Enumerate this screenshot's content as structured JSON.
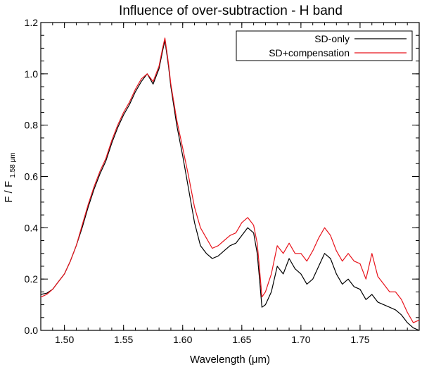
{
  "chart_data": {
    "type": "line",
    "title": "Influence of over-subtraction - H band",
    "xlabel": "Wavelength (μm)",
    "ylabel_main": "F / F",
    "ylabel_sub": "1.58 μm",
    "xlim": [
      1.48,
      1.8
    ],
    "ylim": [
      0.0,
      1.2
    ],
    "xticks": [
      1.5,
      1.55,
      1.6,
      1.65,
      1.7,
      1.75
    ],
    "xtick_labels": [
      "1.50",
      "1.55",
      "1.60",
      "1.65",
      "1.70",
      "1.75"
    ],
    "yticks": [
      0.0,
      0.2,
      0.4,
      0.6,
      0.8,
      1.0,
      1.2
    ],
    "ytick_labels": [
      "0.0",
      "0.2",
      "0.4",
      "0.6",
      "0.8",
      "1.0",
      "1.2"
    ],
    "grid": false,
    "legend_position": "top-right",
    "series": [
      {
        "name": "SD-only",
        "color": "#000000",
        "x": [
          1.48,
          1.485,
          1.49,
          1.495,
          1.5,
          1.505,
          1.51,
          1.515,
          1.52,
          1.525,
          1.53,
          1.535,
          1.54,
          1.545,
          1.55,
          1.555,
          1.56,
          1.565,
          1.57,
          1.575,
          1.58,
          1.583,
          1.585,
          1.588,
          1.59,
          1.595,
          1.6,
          1.605,
          1.61,
          1.615,
          1.62,
          1.625,
          1.63,
          1.635,
          1.64,
          1.645,
          1.65,
          1.655,
          1.66,
          1.663,
          1.665,
          1.667,
          1.67,
          1.675,
          1.68,
          1.685,
          1.69,
          1.695,
          1.7,
          1.705,
          1.71,
          1.715,
          1.72,
          1.725,
          1.73,
          1.735,
          1.74,
          1.745,
          1.75,
          1.755,
          1.76,
          1.765,
          1.77,
          1.775,
          1.78,
          1.785,
          1.79,
          1.795,
          1.8
        ],
        "y": [
          0.14,
          0.145,
          0.16,
          0.19,
          0.22,
          0.27,
          0.33,
          0.4,
          0.48,
          0.55,
          0.61,
          0.66,
          0.73,
          0.79,
          0.84,
          0.88,
          0.93,
          0.97,
          1.0,
          0.96,
          1.02,
          1.09,
          1.13,
          1.03,
          0.95,
          0.8,
          0.68,
          0.55,
          0.42,
          0.33,
          0.3,
          0.28,
          0.29,
          0.31,
          0.33,
          0.34,
          0.37,
          0.4,
          0.38,
          0.3,
          0.2,
          0.09,
          0.1,
          0.15,
          0.25,
          0.22,
          0.28,
          0.24,
          0.22,
          0.18,
          0.2,
          0.25,
          0.3,
          0.28,
          0.22,
          0.18,
          0.2,
          0.17,
          0.16,
          0.12,
          0.14,
          0.11,
          0.1,
          0.09,
          0.08,
          0.06,
          0.03,
          0.01,
          0.0
        ]
      },
      {
        "name": "SD+compensation",
        "color": "#e8141c",
        "x": [
          1.48,
          1.485,
          1.49,
          1.495,
          1.5,
          1.505,
          1.51,
          1.515,
          1.52,
          1.525,
          1.53,
          1.535,
          1.54,
          1.545,
          1.55,
          1.555,
          1.56,
          1.565,
          1.57,
          1.575,
          1.58,
          1.583,
          1.585,
          1.588,
          1.59,
          1.595,
          1.6,
          1.605,
          1.61,
          1.615,
          1.62,
          1.625,
          1.63,
          1.635,
          1.64,
          1.645,
          1.65,
          1.655,
          1.66,
          1.663,
          1.665,
          1.667,
          1.67,
          1.675,
          1.68,
          1.685,
          1.69,
          1.695,
          1.7,
          1.705,
          1.71,
          1.715,
          1.72,
          1.725,
          1.73,
          1.735,
          1.74,
          1.745,
          1.75,
          1.755,
          1.76,
          1.765,
          1.77,
          1.775,
          1.78,
          1.785,
          1.79,
          1.795,
          1.8
        ],
        "y": [
          0.13,
          0.14,
          0.16,
          0.19,
          0.22,
          0.27,
          0.33,
          0.41,
          0.49,
          0.56,
          0.62,
          0.67,
          0.74,
          0.8,
          0.85,
          0.89,
          0.94,
          0.98,
          1.0,
          0.97,
          1.03,
          1.1,
          1.14,
          1.04,
          0.96,
          0.82,
          0.71,
          0.6,
          0.48,
          0.4,
          0.36,
          0.32,
          0.33,
          0.35,
          0.37,
          0.38,
          0.42,
          0.44,
          0.41,
          0.34,
          0.24,
          0.13,
          0.15,
          0.22,
          0.33,
          0.3,
          0.34,
          0.3,
          0.3,
          0.27,
          0.31,
          0.36,
          0.4,
          0.37,
          0.31,
          0.27,
          0.3,
          0.27,
          0.26,
          0.2,
          0.3,
          0.21,
          0.18,
          0.15,
          0.15,
          0.12,
          0.07,
          0.03,
          0.04
        ]
      }
    ]
  }
}
